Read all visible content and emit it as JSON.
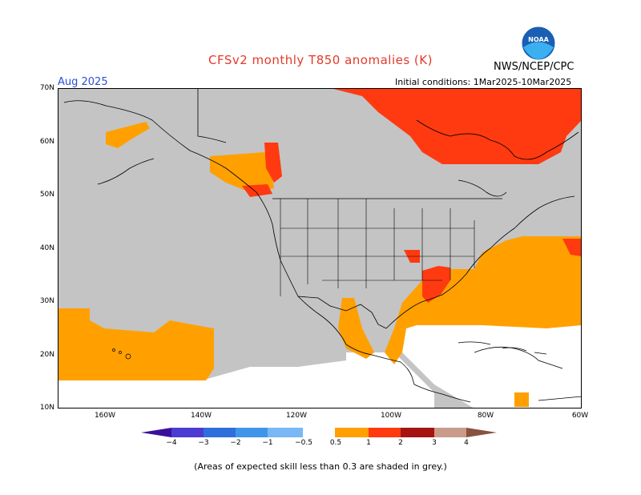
{
  "header": {
    "title": "CFSv2 monthly T850 anomalies (K)",
    "agency": "NWS/NCEP/CPC",
    "logo_text": "NOAA",
    "valid_month": "Aug 2025",
    "initial_conditions": "Initial conditions: 1Mar2025-10Mar2025"
  },
  "axes": {
    "lat_labels": [
      "70N",
      "60N",
      "50N",
      "40N",
      "30N",
      "20N",
      "10N"
    ],
    "lon_labels": [
      "160W",
      "140W",
      "120W",
      "100W",
      "80W",
      "60W"
    ]
  },
  "legend": {
    "tick_labels": [
      "−4",
      "−3",
      "−2",
      "−1",
      "−0.5",
      "0.5",
      "1",
      "2",
      "3",
      "4"
    ],
    "colors": {
      "lt_m4": "#3a0f9e",
      "m4_m3": "#4c3bd0",
      "m3_m2": "#2f6fdc",
      "m2_m1": "#3f96e8",
      "m1_m05": "#78b8f5",
      "neutral": "#ffffff",
      "p05_1": "#ffa000",
      "p1_2": "#ff3a10",
      "p2_3": "#a51410",
      "p3_4": "#c99b8a",
      "gt4": "#8a5040"
    },
    "low_skill_color": "#c4c4c4",
    "note": "(Areas of expected skill less than 0.3 are shaded in grey.)"
  }
}
